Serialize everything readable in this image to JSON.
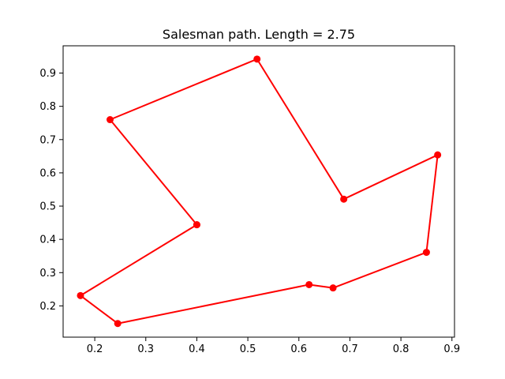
{
  "chart_data": {
    "type": "line",
    "title": "Salesman path. Length = 2.75",
    "xlabel": "",
    "ylabel": "",
    "xlim": [
      0.138,
      0.905
    ],
    "ylim": [
      0.106,
      0.982
    ],
    "xticks": [
      0.2,
      0.3,
      0.4,
      0.5,
      0.6,
      0.7,
      0.8,
      0.9
    ],
    "yticks": [
      0.2,
      0.3,
      0.4,
      0.5,
      0.6,
      0.7,
      0.8,
      0.9
    ],
    "grid": false,
    "series": [
      {
        "color": "#ff0000",
        "marker": "circle",
        "x": [
          0.4,
          0.23,
          0.518,
          0.688,
          0.872,
          0.85,
          0.667,
          0.62,
          0.245,
          0.172,
          0.4
        ],
        "y": [
          0.444,
          0.76,
          0.942,
          0.521,
          0.654,
          0.361,
          0.254,
          0.264,
          0.147,
          0.231,
          0.444
        ]
      }
    ]
  }
}
